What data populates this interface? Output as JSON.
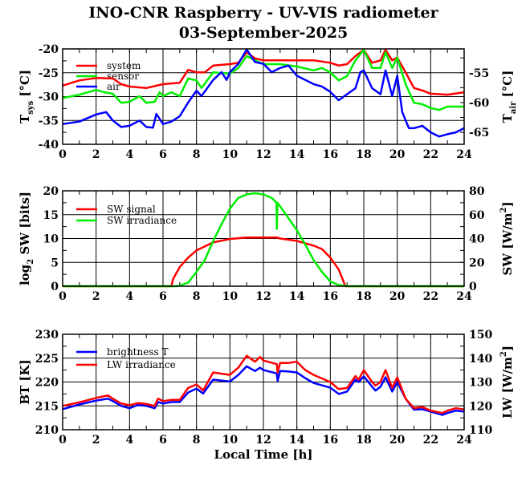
{
  "title": "INO-CNR Raspberry - UV-VIS radiometer",
  "subtitle": "03-September-2025",
  "chart_data": [
    {
      "type": "line",
      "xlim": [
        0,
        24
      ],
      "xticks": [
        0,
        2,
        4,
        6,
        8,
        10,
        12,
        14,
        16,
        18,
        20,
        22,
        24
      ],
      "ylim": [
        -40,
        -20
      ],
      "yticks": [
        -40,
        -35,
        -30,
        -25,
        -20
      ],
      "y2lim": [
        -67.0,
        -51.0
      ],
      "y2ticks": [
        -65,
        -60,
        -55
      ],
      "ylabel": {
        "main": "T",
        "sub": "sys",
        "suffix": " [°C]"
      },
      "y2label": {
        "main": "T",
        "sub": "air",
        "suffix": " [°C]"
      },
      "grid": true,
      "legend": "top-left",
      "series": [
        {
          "name": "system",
          "axis": "left",
          "color": "#ff0000",
          "x": [
            0,
            1,
            2,
            3,
            3.5,
            4,
            5,
            6,
            7,
            7.5,
            8,
            8.5,
            9,
            10,
            10.5,
            11,
            11.5,
            12,
            13,
            14,
            15,
            16,
            16.5,
            17,
            17.5,
            18,
            18.5,
            19,
            19.3,
            19.7,
            20,
            20.5,
            21,
            21.5,
            22,
            23,
            24
          ],
          "y": [
            -27.7,
            -26.6,
            -26.1,
            -26.2,
            -27.4,
            -27.9,
            -28.2,
            -27.4,
            -27.1,
            -24.4,
            -24.9,
            -24.9,
            -23.5,
            -23.2,
            -22.9,
            -20.7,
            -22.0,
            -22.4,
            -22.4,
            -22.4,
            -22.4,
            -22.9,
            -23.5,
            -23.2,
            -21.5,
            -20.2,
            -22.9,
            -22.4,
            -20.2,
            -22.4,
            -21.8,
            -24.9,
            -28.2,
            -28.7,
            -29.4,
            -29.6,
            -29.1
          ]
        },
        {
          "name": "sensor",
          "axis": "left",
          "color": "#00ee00",
          "x": [
            0,
            1,
            2,
            2.5,
            3,
            3.5,
            4,
            4.6,
            5,
            5.5,
            5.8,
            6,
            6.5,
            7,
            7.5,
            8,
            8.3,
            9,
            10,
            10.5,
            11,
            11.5,
            12,
            13,
            14,
            15,
            15.5,
            16,
            16.5,
            17,
            17.5,
            18,
            18.5,
            19,
            19.3,
            19.7,
            20,
            20.5,
            21,
            21.5,
            22,
            22.5,
            23,
            24
          ],
          "y": [
            -30.3,
            -29.6,
            -28.6,
            -29.1,
            -29.4,
            -31.3,
            -31.1,
            -29.9,
            -31.3,
            -31.1,
            -29.1,
            -29.9,
            -29.1,
            -29.9,
            -26.2,
            -26.6,
            -28.2,
            -24.9,
            -25.2,
            -24.0,
            -21.5,
            -22.4,
            -23.2,
            -23.2,
            -23.7,
            -24.5,
            -24.0,
            -24.9,
            -26.6,
            -25.7,
            -22.4,
            -20.2,
            -24.0,
            -24.0,
            -20.7,
            -24.0,
            -21.8,
            -27.4,
            -31.3,
            -31.6,
            -32.4,
            -32.8,
            -32.1,
            -32.1
          ]
        },
        {
          "name": "air",
          "axis": "right",
          "color": "#0000ff",
          "x": [
            0,
            1,
            2,
            2.6,
            3,
            3.5,
            4,
            4.6,
            5,
            5.4,
            5.6,
            6,
            6.5,
            7,
            7.5,
            8,
            8.3,
            9,
            9.5,
            9.8,
            10,
            10.5,
            11,
            11.5,
            12,
            12.5,
            13,
            13.5,
            14,
            15,
            15.5,
            16,
            16.5,
            17,
            17.5,
            17.8,
            18,
            18.5,
            19,
            19.3,
            19.7,
            20,
            20.3,
            20.7,
            21,
            21.5,
            22,
            22.5,
            23,
            23.5,
            24
          ],
          "y": [
            -63.6,
            -63.2,
            -62.0,
            -61.6,
            -63.0,
            -64.1,
            -63.9,
            -63.0,
            -64.1,
            -64.2,
            -61.9,
            -63.6,
            -63.2,
            -62.3,
            -60.0,
            -58.0,
            -58.9,
            -56.2,
            -54.9,
            -56.2,
            -54.9,
            -53.5,
            -51.1,
            -53.2,
            -53.5,
            -54.9,
            -54.2,
            -53.8,
            -55.5,
            -56.9,
            -57.3,
            -58.2,
            -59.6,
            -58.6,
            -57.6,
            -54.9,
            -54.6,
            -57.6,
            -58.6,
            -54.6,
            -58.9,
            -55.5,
            -61.6,
            -64.3,
            -64.3,
            -63.9,
            -65.0,
            -65.7,
            -65.3,
            -65.0,
            -64.3
          ]
        }
      ]
    },
    {
      "type": "line",
      "xlim": [
        0,
        24
      ],
      "xticks": [
        0,
        2,
        4,
        6,
        8,
        10,
        12,
        14,
        16,
        18,
        20,
        22,
        24
      ],
      "ylim": [
        0,
        20
      ],
      "yticks": [
        0,
        5,
        10,
        15,
        20
      ],
      "y2lim": [
        0,
        80
      ],
      "y2ticks": [
        0,
        20,
        40,
        60,
        80
      ],
      "ylabel": {
        "main": "log",
        "sub": "2",
        "suffix": " SW [bits]"
      },
      "y2label": {
        "main": "SW [W/m",
        "sup": "2",
        "suffix": "]"
      },
      "grid": true,
      "legend": "top-left",
      "series": [
        {
          "name": "SW signal",
          "axis": "left",
          "color": "#ff0000",
          "x": [
            0,
            6.5,
            6.6,
            7,
            7.5,
            8,
            9,
            10,
            11,
            12,
            12.8,
            13,
            14,
            15,
            15.5,
            16,
            16.5,
            16.9,
            17,
            24
          ],
          "y": [
            0,
            0,
            1.5,
            4,
            6,
            7.5,
            9.2,
            9.9,
            10.2,
            10.2,
            10.2,
            10,
            9.5,
            8.5,
            7.8,
            6,
            3.5,
            0,
            0,
            0
          ]
        },
        {
          "name": "SW irradiance",
          "axis": "right",
          "color": "#00ee00",
          "x": [
            0,
            6.8,
            7,
            7.5,
            8,
            8.5,
            9,
            9.5,
            10,
            10.5,
            11,
            11.5,
            12,
            12.5,
            12.78,
            12.8,
            12.84,
            13,
            14,
            14.5,
            15,
            15.5,
            16,
            16.5,
            17,
            24
          ],
          "y": [
            0,
            0,
            0.5,
            3,
            12,
            22,
            38,
            52,
            65,
            74,
            77,
            78,
            77,
            74,
            70,
            48,
            70,
            67,
            47,
            35,
            22,
            12,
            4,
            1,
            0,
            0
          ]
        }
      ]
    },
    {
      "type": "line",
      "xlim": [
        0,
        24
      ],
      "xticks": [
        0,
        2,
        4,
        6,
        8,
        10,
        12,
        14,
        16,
        18,
        20,
        22,
        24
      ],
      "ylim": [
        210,
        230
      ],
      "yticks": [
        210,
        215,
        220,
        225,
        230
      ],
      "y2lim": [
        110,
        150
      ],
      "y2ticks": [
        110,
        120,
        130,
        140,
        150
      ],
      "ylabel": {
        "main": "BT [K]"
      },
      "y2label": {
        "main": "LW [W/m",
        "sup": "2",
        "suffix": "]"
      },
      "xlabel": "Local Time [h]",
      "grid": true,
      "legend": "top-left",
      "series": [
        {
          "name": "brightness T",
          "axis": "left",
          "color": "#0000ff",
          "x": [
            0,
            1,
            2,
            2.7,
            3,
            3.5,
            4,
            4.5,
            5,
            5.5,
            5.7,
            6,
            6.5,
            7,
            7.5,
            8,
            8.4,
            9,
            9.5,
            10,
            10.5,
            11,
            11.5,
            11.8,
            12,
            12.8,
            12.85,
            13,
            13.5,
            14,
            14.5,
            15,
            16,
            16.5,
            17,
            17.5,
            17.7,
            18,
            18.5,
            18.7,
            19,
            19.3,
            19.7,
            20,
            20.5,
            21,
            21.5,
            22,
            22.7,
            23,
            23.5,
            24
          ],
          "y": [
            214.3,
            215.3,
            216.1,
            216.5,
            216,
            215,
            214.5,
            215.2,
            215,
            214.5,
            215.8,
            215.5,
            215.8,
            215.8,
            217.8,
            218.6,
            217.6,
            220.5,
            220.3,
            220.1,
            221.5,
            223.3,
            222.3,
            223,
            222.5,
            221.8,
            220.2,
            222.3,
            222.2,
            222,
            220.8,
            219.8,
            218.8,
            217.5,
            218,
            220.5,
            220,
            221.2,
            219,
            218.2,
            219,
            221,
            218,
            220,
            216.5,
            214.2,
            214.3,
            213.8,
            213.1,
            213.5,
            214,
            213.8
          ]
        },
        {
          "name": "LW irradiance",
          "axis": "right",
          "color": "#ff0000",
          "x": [
            0,
            1,
            2,
            2.7,
            3,
            3.5,
            4,
            4.5,
            5,
            5.5,
            5.7,
            6,
            6.5,
            7,
            7.5,
            8,
            8.4,
            9,
            9.5,
            10,
            10.5,
            11,
            11.5,
            11.8,
            12,
            12.8,
            12.85,
            13,
            13.5,
            14,
            14.5,
            15,
            16,
            16.5,
            17,
            17.5,
            17.7,
            18,
            18.5,
            18.7,
            19,
            19.3,
            19.7,
            20,
            20.5,
            21,
            21.5,
            22,
            22.7,
            23,
            23.5,
            24
          ],
          "y": [
            120,
            121.5,
            123.3,
            124.4,
            123,
            121,
            120.3,
            121.2,
            120.8,
            120,
            123,
            122,
            122.5,
            122.5,
            127.5,
            129,
            126.5,
            134,
            133.5,
            133,
            136,
            141,
            138.5,
            140.5,
            139,
            137.5,
            134,
            138,
            138,
            138.5,
            135,
            133,
            130,
            127,
            127.5,
            132.5,
            131,
            135,
            130,
            128.5,
            130,
            135,
            127.5,
            132,
            123,
            119,
            119.5,
            118,
            117,
            118,
            119,
            118.5
          ]
        }
      ]
    }
  ]
}
